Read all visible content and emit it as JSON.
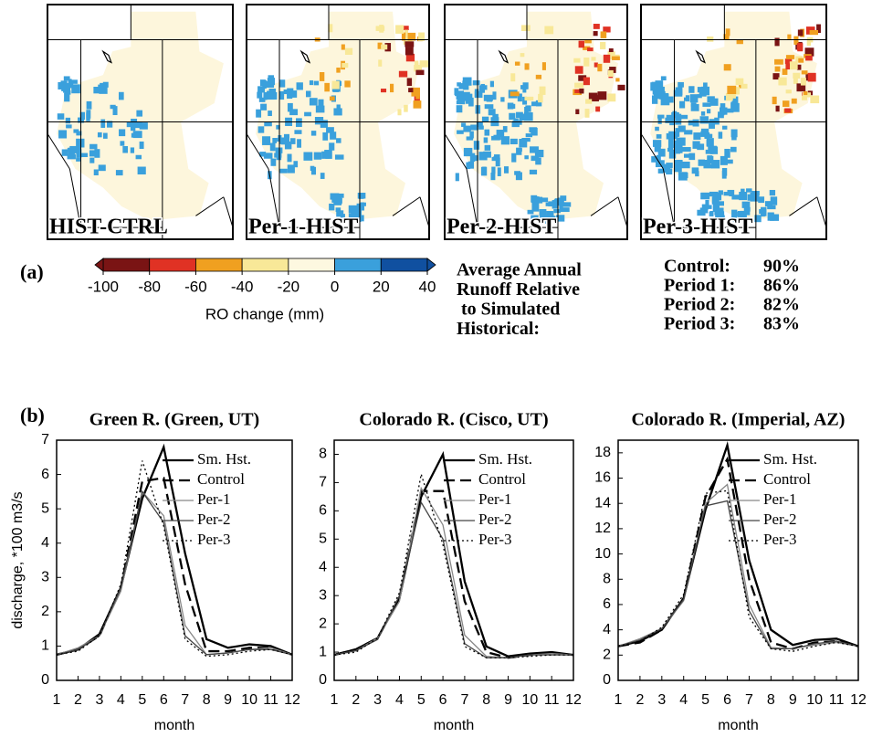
{
  "panel_a": {
    "label": "(a)",
    "maps": [
      "HIST-CTRL",
      "Per-1-HIST",
      "Per-2-HIST",
      "Per-3-HIST"
    ],
    "colorbar": {
      "ticks": [
        -100,
        -80,
        -60,
        -40,
        -20,
        0,
        20,
        40
      ],
      "colors": [
        "#7a1414",
        "#e03224",
        "#f0a020",
        "#f8e898",
        "#fdf8e0",
        "#3aa0dc",
        "#1050a0"
      ],
      "label": "RO change (mm)"
    },
    "runoff_title": [
      "Average Annual",
      "Runoff Relative",
      "to Simulated",
      "Historical:"
    ],
    "runoff_table": [
      [
        "Control:",
        "90%"
      ],
      [
        "Period 1:",
        "86%"
      ],
      [
        "Period 2:",
        "82%"
      ],
      [
        "Period 3:",
        "83%"
      ]
    ]
  },
  "panel_b_label": "(b)",
  "chart_data": [
    {
      "type": "line",
      "title": "Green R. (Green, UT)",
      "y_label": "discharge, *100 m3/s",
      "x_label": "month",
      "x": [
        1,
        2,
        3,
        4,
        5,
        6,
        7,
        8,
        9,
        10,
        11,
        12
      ],
      "xlim": [
        1,
        12
      ],
      "xticks": [
        1,
        2,
        3,
        4,
        5,
        6,
        7,
        8,
        9,
        10,
        11,
        12
      ],
      "ylim": [
        0,
        7
      ],
      "yticks": [
        0,
        1,
        2,
        3,
        4,
        5,
        6,
        7
      ],
      "series": [
        {
          "name": "Sm. Hst.",
          "color": "#000000",
          "style": "solid",
          "values": [
            0.75,
            0.9,
            1.35,
            2.7,
            5.3,
            6.8,
            3.7,
            1.2,
            0.95,
            1.05,
            1.0,
            0.75
          ]
        },
        {
          "name": "Control",
          "color": "#000000",
          "style": "dashed",
          "values": [
            0.75,
            0.9,
            1.3,
            2.7,
            5.8,
            5.9,
            2.8,
            0.85,
            0.85,
            0.95,
            0.95,
            0.75
          ]
        },
        {
          "name": "Per-1",
          "color": "#888888",
          "style": "solid",
          "values": [
            0.75,
            0.95,
            1.3,
            2.6,
            5.5,
            4.8,
            1.6,
            0.75,
            0.8,
            0.9,
            0.95,
            0.75
          ]
        },
        {
          "name": "Per-2",
          "color": "#444444",
          "style": "solid",
          "values": [
            0.75,
            0.9,
            1.3,
            2.7,
            5.5,
            4.6,
            1.3,
            0.75,
            0.8,
            0.9,
            0.9,
            0.75
          ]
        },
        {
          "name": "Per-3",
          "color": "#000000",
          "style": "dotted",
          "values": [
            0.75,
            0.85,
            1.3,
            2.8,
            6.4,
            4.5,
            1.2,
            0.7,
            0.75,
            0.85,
            0.9,
            0.75
          ]
        }
      ]
    },
    {
      "type": "line",
      "title": "Colorado R. (Cisco, UT)",
      "x_label": "month",
      "x": [
        1,
        2,
        3,
        4,
        5,
        6,
        7,
        8,
        9,
        10,
        11,
        12
      ],
      "xlim": [
        1,
        12
      ],
      "xticks": [
        1,
        2,
        3,
        4,
        5,
        6,
        7,
        8,
        9,
        10,
        11,
        12
      ],
      "ylim": [
        0,
        8.5
      ],
      "yticks": [
        0,
        1,
        2,
        3,
        4,
        5,
        6,
        7,
        8
      ],
      "series": [
        {
          "name": "Sm. Hst.",
          "color": "#000000",
          "style": "solid",
          "values": [
            0.9,
            1.1,
            1.5,
            2.9,
            6.5,
            8.0,
            3.5,
            1.2,
            0.85,
            0.95,
            1.0,
            0.9
          ]
        },
        {
          "name": "Control",
          "color": "#000000",
          "style": "dashed",
          "values": [
            0.9,
            1.1,
            1.5,
            2.9,
            6.7,
            6.7,
            2.8,
            1.0,
            0.8,
            0.9,
            0.95,
            0.9
          ]
        },
        {
          "name": "Per-1",
          "color": "#888888",
          "style": "solid",
          "values": [
            0.9,
            1.05,
            1.5,
            2.8,
            6.8,
            5.5,
            1.6,
            0.85,
            0.8,
            0.9,
            0.95,
            0.9
          ]
        },
        {
          "name": "Per-2",
          "color": "#444444",
          "style": "solid",
          "values": [
            0.9,
            1.05,
            1.45,
            3.0,
            6.3,
            5.0,
            1.3,
            0.8,
            0.8,
            0.9,
            0.9,
            0.9
          ]
        },
        {
          "name": "Per-3",
          "color": "#000000",
          "style": "dotted",
          "values": [
            0.9,
            1.0,
            1.5,
            3.1,
            7.3,
            4.8,
            1.2,
            0.8,
            0.8,
            0.85,
            0.9,
            0.9
          ]
        }
      ]
    },
    {
      "type": "line",
      "title": "Colorado R. (Imperial, AZ)",
      "x_label": "month",
      "x": [
        1,
        2,
        3,
        4,
        5,
        6,
        7,
        8,
        9,
        10,
        11,
        12
      ],
      "xlim": [
        1,
        12
      ],
      "xticks": [
        1,
        2,
        3,
        4,
        5,
        6,
        7,
        8,
        9,
        10,
        11,
        12
      ],
      "ylim": [
        0,
        19
      ],
      "yticks": [
        0,
        2,
        4,
        6,
        8,
        10,
        12,
        14,
        16,
        18
      ],
      "series": [
        {
          "name": "Sm. Hst.",
          "color": "#000000",
          "style": "solid",
          "values": [
            2.7,
            3.1,
            4.0,
            6.5,
            13.5,
            18.6,
            9.5,
            4.0,
            2.8,
            3.2,
            3.3,
            2.7
          ]
        },
        {
          "name": "Control",
          "color": "#000000",
          "style": "dashed",
          "values": [
            2.7,
            3.0,
            4.0,
            6.5,
            14.5,
            17.5,
            8.0,
            3.0,
            2.5,
            3.0,
            3.1,
            2.7
          ]
        },
        {
          "name": "Per-1",
          "color": "#888888",
          "style": "solid",
          "values": [
            2.7,
            3.3,
            4.1,
            6.3,
            14.0,
            15.5,
            6.0,
            2.6,
            2.5,
            2.8,
            3.0,
            2.7
          ]
        },
        {
          "name": "Per-2",
          "color": "#444444",
          "style": "solid",
          "values": [
            2.7,
            3.2,
            4.1,
            6.4,
            13.8,
            14.2,
            5.5,
            2.5,
            2.5,
            2.9,
            3.1,
            2.7
          ]
        },
        {
          "name": "Per-3",
          "color": "#000000",
          "style": "dotted",
          "values": [
            2.7,
            3.1,
            4.2,
            6.8,
            14.8,
            15.0,
            5.0,
            2.5,
            2.3,
            2.7,
            3.0,
            2.7
          ]
        }
      ]
    }
  ]
}
